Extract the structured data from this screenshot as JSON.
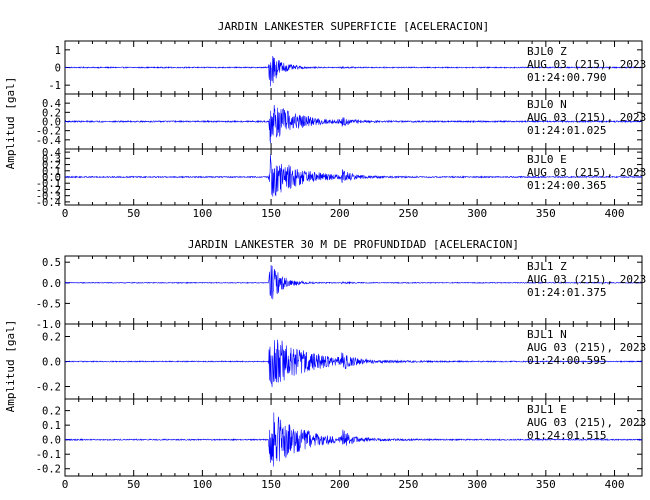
{
  "chart_data": [
    {
      "type": "line",
      "title": "JARDIN LANKESTER SUPERFICIE [ACELERACION]",
      "ylabel": "Amplitud [gal]",
      "xlim": [
        0,
        420
      ],
      "x_ticks": [
        0,
        50,
        100,
        150,
        200,
        250,
        300,
        350,
        400
      ],
      "panels": [
        {
          "station": "BJL0",
          "component": "Z",
          "date": "AUG 03 (215), 2023",
          "time": "01:24:00.790",
          "ylim": [
            -1.5,
            1.5
          ],
          "y_ticks": [
            1,
            0,
            -1
          ],
          "y_tick_labels": [
            "1",
            "0",
            "-1"
          ],
          "envelope": {
            "onset_s": 148,
            "noise_amplitude": 0.03,
            "peak_amplitude": 1.4,
            "decay_s": 7,
            "secondary_s": 201,
            "secondary_amplitude": 0.03
          }
        },
        {
          "station": "BJL0",
          "component": "N",
          "date": "AUG 03 (215), 2023",
          "time": "01:24:01.025",
          "ylim": [
            -0.6,
            0.6
          ],
          "y_ticks": [
            0.4,
            0.2,
            0.0,
            -0.2,
            -0.4
          ],
          "y_tick_labels": [
            "0.4",
            "0.2",
            "0.0",
            "-0.2",
            "-0.4"
          ],
          "envelope": {
            "onset_s": 148,
            "noise_amplitude": 0.015,
            "peak_amplitude": 0.5,
            "decay_s": 18,
            "secondary_s": 201,
            "secondary_amplitude": 0.08
          }
        },
        {
          "station": "BJL0",
          "component": "E",
          "date": "AUG 03 (215), 2023",
          "time": "01:24:00.365",
          "ylim": [
            -0.45,
            0.45
          ],
          "y_ticks": [
            0.4,
            0.3,
            0.2,
            0.1,
            0.0,
            -0.1,
            -0.2,
            -0.3,
            -0.4
          ],
          "y_tick_labels": [
            "0.4",
            "0.3",
            "0.2",
            "0.1",
            "0.0",
            "-0.1",
            "-0.2",
            "-0.3",
            "-0.4"
          ],
          "envelope": {
            "onset_s": 148,
            "noise_amplitude": 0.01,
            "peak_amplitude": 0.4,
            "decay_s": 20,
            "secondary_s": 201,
            "secondary_amplitude": 0.1
          }
        }
      ]
    },
    {
      "type": "line",
      "title": "JARDIN LANKESTER 30 M DE PROFUNDIDAD [ACELERACION]",
      "ylabel": "Amplitud [gal]",
      "xlim": [
        0,
        420
      ],
      "x_ticks": [
        0,
        50,
        100,
        150,
        200,
        250,
        300,
        350,
        400
      ],
      "panels": [
        {
          "station": "BJL1",
          "component": "Z",
          "date": "AUG 03 (215), 2023",
          "time": "01:24:01.375",
          "ylim": [
            -1.0,
            0.65
          ],
          "y_ticks": [
            0.5,
            0.0,
            -0.5,
            -1.0
          ],
          "y_tick_labels": [
            "0.5",
            "0.0",
            "-0.5",
            "-1.0"
          ],
          "envelope": {
            "onset_s": 148,
            "noise_amplitude": 0.01,
            "peak_amplitude": 0.6,
            "decay_s": 8,
            "secondary_s": 201,
            "secondary_amplitude": 0.02
          }
        },
        {
          "station": "BJL1",
          "component": "N",
          "date": "AUG 03 (215), 2023",
          "time": "01:24:00.595",
          "ylim": [
            -0.3,
            0.3
          ],
          "y_ticks": [
            0.2,
            0.0,
            -0.2
          ],
          "y_tick_labels": [
            "0.2",
            "0.0",
            "-0.2"
          ],
          "envelope": {
            "onset_s": 148,
            "noise_amplitude": 0.004,
            "peak_amplitude": 0.25,
            "decay_s": 25,
            "secondary_s": 201,
            "secondary_amplitude": 0.05
          }
        },
        {
          "station": "BJL1",
          "component": "E",
          "date": "AUG 03 (215), 2023",
          "time": "01:24:01.515",
          "ylim": [
            -0.25,
            0.28
          ],
          "y_ticks": [
            0.2,
            0.1,
            0.0,
            -0.1,
            -0.2
          ],
          "y_tick_labels": [
            "0.2",
            "0.1",
            "0.0",
            "-0.1",
            "-0.2"
          ],
          "envelope": {
            "onset_s": 148,
            "noise_amplitude": 0.004,
            "peak_amplitude": 0.22,
            "decay_s": 22,
            "secondary_s": 201,
            "secondary_amplitude": 0.06
          }
        }
      ]
    }
  ],
  "colors": {
    "trace": "#0000ff",
    "axes": "#000000",
    "background": "#ffffff"
  }
}
